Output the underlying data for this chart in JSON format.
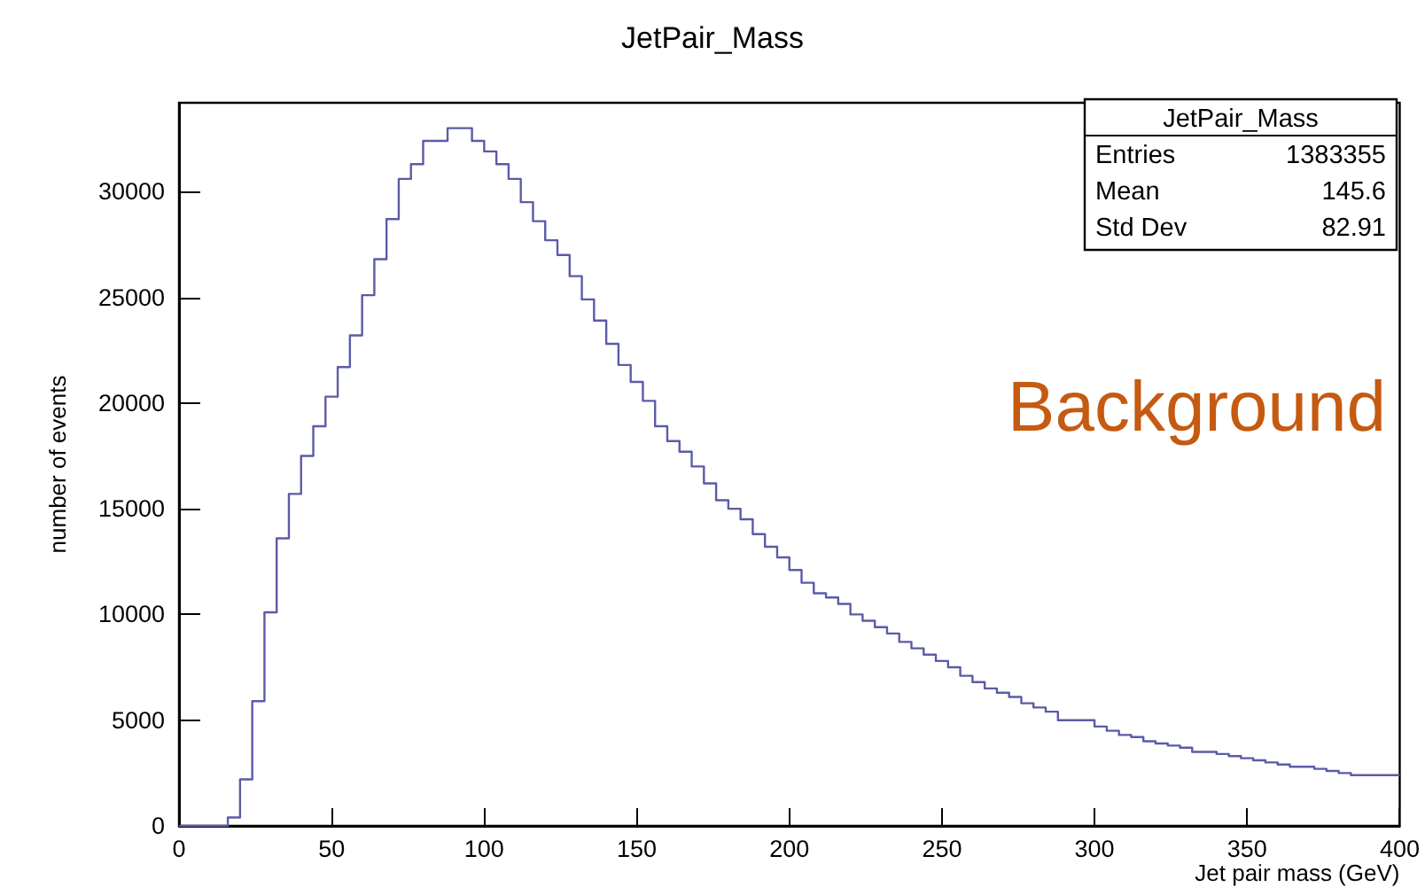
{
  "chart_data": {
    "type": "histogram",
    "title": "JetPair_Mass",
    "xlabel": "Jet pair mass (GeV)",
    "ylabel": "number of events",
    "bins": [
      0,
      4,
      8,
      12,
      16,
      20,
      24,
      28,
      32,
      36,
      40,
      44,
      48,
      52,
      56,
      60,
      64,
      68,
      72,
      76,
      80,
      84,
      88,
      92,
      96,
      100,
      104,
      108,
      112,
      116,
      120,
      124,
      128,
      132,
      136,
      140,
      144,
      148,
      152,
      156,
      160,
      164,
      168,
      172,
      176,
      180,
      184,
      188,
      192,
      196,
      200,
      204,
      208,
      212,
      216,
      220,
      224,
      228,
      232,
      236,
      240,
      244,
      248,
      252,
      256,
      260,
      264,
      268,
      272,
      276,
      280,
      284,
      288,
      292,
      296,
      300,
      304,
      308,
      312,
      316,
      320,
      324,
      328,
      332,
      336,
      340,
      344,
      348,
      352,
      356,
      360,
      364,
      368,
      372,
      376,
      380,
      384,
      388,
      392,
      396,
      400
    ],
    "values": [
      0,
      0,
      0,
      0,
      400,
      2200,
      5900,
      10100,
      13600,
      15700,
      17500,
      18900,
      20300,
      21700,
      23200,
      25100,
      26800,
      28700,
      30600,
      31300,
      32400,
      32400,
      33000,
      33000,
      32400,
      31900,
      31300,
      30600,
      29500,
      28600,
      27700,
      27000,
      26000,
      24900,
      23900,
      22800,
      21800,
      21000,
      20100,
      18900,
      18200,
      17700,
      17000,
      16200,
      15400,
      15000,
      14500,
      13800,
      13200,
      12700,
      12100,
      11500,
      11000,
      10800,
      10500,
      10000,
      9700,
      9400,
      9100,
      8700,
      8400,
      8100,
      7800,
      7500,
      7100,
      6800,
      6500,
      6300,
      6100,
      5800,
      5600,
      5400,
      5000,
      5000,
      5000,
      4700,
      4500,
      4300,
      4200,
      4000,
      3900,
      3800,
      3700,
      3500,
      3500,
      3400,
      3300,
      3200,
      3100,
      3000,
      2900,
      2800,
      2800,
      2700,
      2600,
      2500,
      2400,
      2400,
      2400,
      2400
    ],
    "color": "#5b5ba8",
    "xlim": [
      0,
      400
    ],
    "xticks": [
      0,
      50,
      100,
      150,
      200,
      250,
      300,
      350,
      400
    ],
    "ylim": [
      0,
      34200
    ],
    "yticks": [
      0,
      5000,
      10000,
      15000,
      20000,
      25000,
      30000
    ],
    "grid": false,
    "annotations": [
      "JetPair_Mass",
      "Entries",
      "1383355",
      "Mean",
      "145.6",
      "Std Dev",
      "82.91",
      "Background"
    ]
  }
}
